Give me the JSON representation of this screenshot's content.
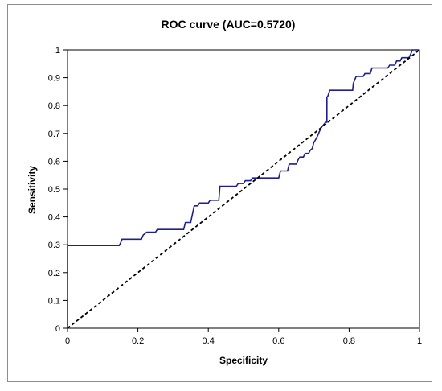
{
  "chart_data": {
    "type": "line",
    "title": "ROC curve (AUC=0.5720)",
    "xlabel": "Specificity",
    "ylabel": "Sensitivity",
    "xlim": [
      0,
      1
    ],
    "ylim": [
      0,
      1
    ],
    "x_ticks": [
      "0",
      "0.2",
      "0.4",
      "0.6",
      "0.8",
      "1"
    ],
    "y_ticks": [
      "0",
      "0.1",
      "0.2",
      "0.3",
      "0.4",
      "0.5",
      "0.6",
      "0.7",
      "0.8",
      "0.9",
      "1"
    ],
    "grid": false,
    "legend": "none",
    "series": [
      {
        "color": "#1f1f8f",
        "style": "solid",
        "points": [
          [
            0,
            0
          ],
          [
            0,
            0.297
          ],
          [
            0.147,
            0.297
          ],
          [
            0.152,
            0.31
          ],
          [
            0.155,
            0.32
          ],
          [
            0.21,
            0.32
          ],
          [
            0.215,
            0.335
          ],
          [
            0.225,
            0.345
          ],
          [
            0.25,
            0.345
          ],
          [
            0.255,
            0.355
          ],
          [
            0.33,
            0.355
          ],
          [
            0.335,
            0.38
          ],
          [
            0.35,
            0.38
          ],
          [
            0.355,
            0.41
          ],
          [
            0.36,
            0.44
          ],
          [
            0.37,
            0.44
          ],
          [
            0.375,
            0.45
          ],
          [
            0.4,
            0.45
          ],
          [
            0.405,
            0.46
          ],
          [
            0.43,
            0.46
          ],
          [
            0.433,
            0.51
          ],
          [
            0.48,
            0.51
          ],
          [
            0.485,
            0.52
          ],
          [
            0.5,
            0.52
          ],
          [
            0.505,
            0.53
          ],
          [
            0.52,
            0.53
          ],
          [
            0.525,
            0.54
          ],
          [
            0.6,
            0.54
          ],
          [
            0.605,
            0.565
          ],
          [
            0.625,
            0.565
          ],
          [
            0.63,
            0.59
          ],
          [
            0.65,
            0.59
          ],
          [
            0.655,
            0.605
          ],
          [
            0.66,
            0.615
          ],
          [
            0.67,
            0.615
          ],
          [
            0.675,
            0.628
          ],
          [
            0.685,
            0.628
          ],
          [
            0.69,
            0.64
          ],
          [
            0.695,
            0.645
          ],
          [
            0.7,
            0.668
          ],
          [
            0.705,
            0.678
          ],
          [
            0.71,
            0.69
          ],
          [
            0.715,
            0.705
          ],
          [
            0.72,
            0.72
          ],
          [
            0.727,
            0.73
          ],
          [
            0.733,
            0.74
          ],
          [
            0.737,
            0.74
          ],
          [
            0.737,
            0.83
          ],
          [
            0.74,
            0.835
          ],
          [
            0.745,
            0.855
          ],
          [
            0.81,
            0.855
          ],
          [
            0.812,
            0.88
          ],
          [
            0.82,
            0.905
          ],
          [
            0.84,
            0.905
          ],
          [
            0.845,
            0.915
          ],
          [
            0.86,
            0.915
          ],
          [
            0.865,
            0.935
          ],
          [
            0.91,
            0.935
          ],
          [
            0.915,
            0.945
          ],
          [
            0.93,
            0.945
          ],
          [
            0.935,
            0.96
          ],
          [
            0.945,
            0.96
          ],
          [
            0.95,
            0.972
          ],
          [
            0.97,
            0.972
          ],
          [
            0.975,
            0.985
          ],
          [
            0.98,
            1
          ],
          [
            1,
            1
          ]
        ]
      },
      {
        "color": "#000000",
        "style": "dashed",
        "points": [
          [
            0,
            0
          ],
          [
            1,
            1
          ]
        ]
      }
    ]
  }
}
